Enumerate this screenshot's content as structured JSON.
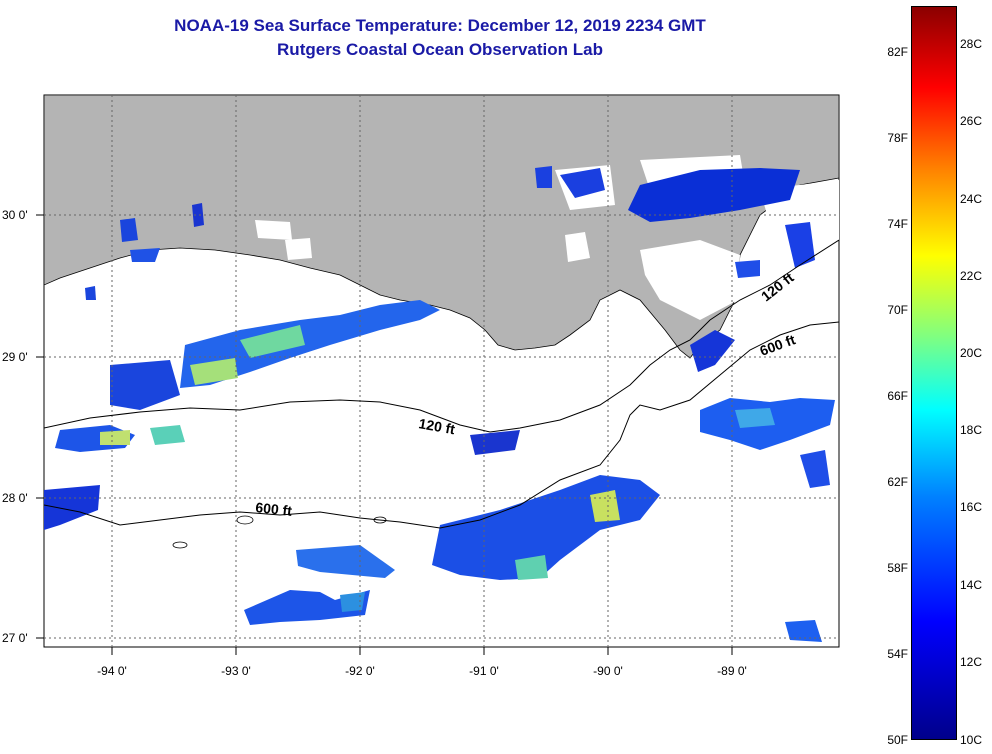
{
  "header": {
    "title": "NOAA-19 Sea Surface Temperature:  December 12, 2019 2234 GMT",
    "subtitle": "Rutgers Coastal Ocean Observation Lab"
  },
  "map": {
    "region": "Northern Gulf of Mexico, Louisiana coast",
    "latitude_labels": [
      "30 0'",
      "29 0'",
      "28 0'",
      "27 0'"
    ],
    "longitude_labels": [
      "-94 0'",
      "-93 0'",
      "-92 0'",
      "-91 0'",
      "-90 0'",
      "-89 0'"
    ],
    "contours": [
      {
        "label": "120 ft"
      },
      {
        "label": "600 ft"
      },
      {
        "label": "120 ft"
      },
      {
        "label": "600 ft"
      }
    ],
    "colors": {
      "land": "#b4b4b4",
      "no_data": "#ffffff",
      "grid": "#666666"
    }
  },
  "colorbar": {
    "fahrenheit_labels": [
      "82F",
      "78F",
      "74F",
      "70F",
      "66F",
      "62F",
      "58F",
      "54F",
      "50F"
    ],
    "celsius_labels": [
      "28C",
      "26C",
      "24C",
      "22C",
      "20C",
      "18C",
      "16C",
      "14C",
      "12C",
      "10C"
    ],
    "range_celsius": [
      10,
      29
    ],
    "colors": [
      "#00008b",
      "#0000ff",
      "#0080ff",
      "#00ffff",
      "#80ff80",
      "#ffff00",
      "#ff8000",
      "#ff0000",
      "#8b0000"
    ]
  }
}
